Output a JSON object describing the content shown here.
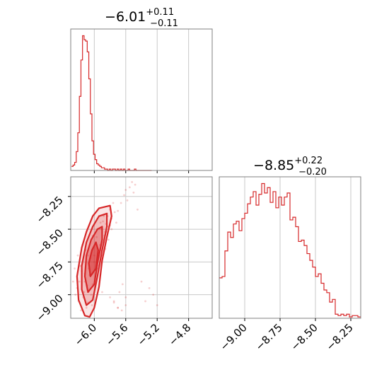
{
  "chart_data": [
    {
      "type": "histogram",
      "panel": "marginal-x",
      "title": {
        "value": "−6.01",
        "upper": "+0.11",
        "lower": "−0.11"
      },
      "xlim": [
        -6.3,
        -4.5
      ],
      "ylim": [
        0,
        1.05
      ],
      "grid": true,
      "color": "#d62728",
      "x": [
        -6.28,
        -6.26,
        -6.24,
        -6.22,
        -6.2,
        -6.18,
        -6.16,
        -6.14,
        -6.12,
        -6.1,
        -6.08,
        -6.06,
        -6.04,
        -6.02,
        -6.0,
        -5.98,
        -5.96,
        -5.94,
        -5.92,
        -5.9,
        -5.88,
        -5.86,
        -5.84,
        -5.82,
        -5.8,
        -5.78,
        -5.76,
        -5.74,
        -5.72,
        -5.7,
        -5.68,
        -5.66,
        -5.64,
        -5.62,
        -5.6,
        -5.58,
        -5.56,
        -5.54,
        -5.52,
        -5.5,
        -5.48,
        -5.46,
        -5.44,
        -5.42,
        -5.4,
        -5.38,
        -5.36,
        -5.34,
        -5.32,
        -5.3,
        -5.28
      ],
      "y": [
        0.03,
        0.04,
        0.06,
        0.14,
        0.28,
        0.55,
        0.82,
        1.0,
        0.97,
        0.96,
        0.88,
        0.68,
        0.42,
        0.22,
        0.12,
        0.08,
        0.05,
        0.04,
        0.03,
        0.02,
        0.02,
        0.01,
        0.01,
        0.0,
        0.01,
        0.0,
        0.01,
        0.01,
        0.0,
        0.01,
        0.0,
        0.01,
        0.0,
        0.01,
        0.0,
        0.0,
        0.01,
        0.0,
        0.0,
        0.0,
        0.01,
        0.0,
        0.0,
        0.0,
        0.0,
        0.0,
        0.0,
        0.0,
        0.0,
        0.0,
        0.0
      ]
    },
    {
      "type": "scatter",
      "panel": "joint",
      "xlim": [
        -6.3,
        -4.5
      ],
      "ylim": [
        -9.18,
        -8.1
      ],
      "xticks": [
        "−6.0",
        "−5.6",
        "−5.2",
        "−4.8"
      ],
      "yticks": [
        "−8.25",
        "−8.50",
        "−8.75",
        "−9.00"
      ],
      "grid": true,
      "color": "#d62728",
      "x": [
        -6.22,
        -6.2,
        -6.18,
        -6.15,
        -6.12,
        -6.1,
        -6.08,
        -6.06,
        -6.04,
        -6.02,
        -6.0,
        -5.98,
        -5.96,
        -5.94,
        -5.92,
        -5.9,
        -5.88,
        -5.86,
        -5.84,
        -5.82,
        -5.8,
        -5.78,
        -5.76,
        -5.74,
        -6.16,
        -6.14,
        -6.11,
        -6.09,
        -6.05,
        -6.03,
        -6.01,
        -5.99,
        -5.97,
        -5.95,
        -5.93,
        -5.91,
        -5.89,
        -5.87,
        -5.85,
        -5.83,
        -6.13,
        -6.07,
        -6.0,
        -5.96,
        -5.92,
        -5.88,
        -5.84,
        -5.8,
        -6.19,
        -6.17,
        -6.12,
        -6.08,
        -6.02,
        -5.98,
        -5.94,
        -5.9,
        -5.86,
        -5.82,
        -5.78,
        -5.72,
        -5.7,
        -5.66,
        -5.62,
        -5.6,
        -5.58,
        -5.55,
        -5.5,
        -5.45,
        -5.4,
        -5.35,
        -5.3,
        -5.25,
        -5.2,
        -5.6,
        -5.7,
        -5.75,
        -5.68,
        -5.64,
        -6.25,
        -6.27,
        -6.24,
        -6.21,
        -5.9,
        -5.8,
        -5.75,
        -5.7,
        -5.65,
        -5.6,
        -5.52,
        -5.48
      ],
      "y": [
        -8.95,
        -9.05,
        -8.78,
        -8.62,
        -8.9,
        -9.1,
        -8.7,
        -8.85,
        -9.0,
        -8.55,
        -8.75,
        -8.6,
        -8.5,
        -8.68,
        -8.45,
        -8.58,
        -8.4,
        -8.52,
        -8.38,
        -8.48,
        -8.35,
        -8.42,
        -8.3,
        -8.37,
        -8.82,
        -9.02,
        -8.66,
        -8.93,
        -8.72,
        -9.08,
        -8.64,
        -8.88,
        -8.56,
        -8.8,
        -8.62,
        -8.5,
        -8.44,
        -8.55,
        -8.46,
        -8.4,
        -8.98,
        -8.8,
        -8.7,
        -8.74,
        -8.66,
        -8.6,
        -8.52,
        -8.47,
        -8.9,
        -9.12,
        -8.84,
        -9.06,
        -8.92,
        -8.84,
        -8.78,
        -8.7,
        -8.65,
        -8.58,
        -8.5,
        -8.45,
        -8.36,
        -8.3,
        -8.24,
        -8.2,
        -8.28,
        -8.18,
        -8.22,
        -8.35,
        -8.9,
        -9.05,
        -8.95,
        -9.0,
        -9.08,
        -9.02,
        -9.1,
        -9.05,
        -8.98,
        -8.92,
        -8.8,
        -8.9,
        -9.0,
        -8.7,
        -8.98,
        -9.02,
        -9.06,
        -9.1,
        -9.12,
        -9.08,
        -8.14,
        -8.16
      ],
      "contours": [
        {
          "level": "outer",
          "points": [
            [
              -6.12,
              -9.16
            ],
            [
              -6.2,
              -9.04
            ],
            [
              -6.22,
              -8.86
            ],
            [
              -6.16,
              -8.64
            ],
            [
              -6.1,
              -8.52
            ],
            [
              -6.02,
              -8.4
            ],
            [
              -5.94,
              -8.34
            ],
            [
              -5.8,
              -8.32
            ],
            [
              -5.78,
              -8.4
            ],
            [
              -5.84,
              -8.56
            ],
            [
              -5.9,
              -8.74
            ],
            [
              -5.94,
              -8.94
            ],
            [
              -6.0,
              -9.1
            ],
            [
              -6.06,
              -9.17
            ]
          ]
        },
        {
          "level": "middle",
          "points": [
            [
              -6.1,
              -9.08
            ],
            [
              -6.16,
              -8.96
            ],
            [
              -6.16,
              -8.78
            ],
            [
              -6.1,
              -8.6
            ],
            [
              -6.02,
              -8.48
            ],
            [
              -5.94,
              -8.4
            ],
            [
              -5.84,
              -8.38
            ],
            [
              -5.84,
              -8.48
            ],
            [
              -5.9,
              -8.66
            ],
            [
              -5.96,
              -8.86
            ],
            [
              -6.02,
              -9.04
            ]
          ]
        },
        {
          "level": "inner",
          "points": [
            [
              -6.08,
              -8.98
            ],
            [
              -6.12,
              -8.86
            ],
            [
              -6.1,
              -8.7
            ],
            [
              -6.04,
              -8.58
            ],
            [
              -5.96,
              -8.5
            ],
            [
              -5.9,
              -8.48
            ],
            [
              -5.9,
              -8.58
            ],
            [
              -5.96,
              -8.76
            ],
            [
              -6.0,
              -8.92
            ]
          ]
        },
        {
          "level": "core",
          "points": [
            [
              -6.05,
              -8.86
            ],
            [
              -6.07,
              -8.76
            ],
            [
              -6.03,
              -8.66
            ],
            [
              -5.98,
              -8.6
            ],
            [
              -5.95,
              -8.66
            ],
            [
              -5.98,
              -8.8
            ]
          ]
        }
      ]
    },
    {
      "type": "histogram",
      "panel": "marginal-y",
      "title": {
        "value": "−8.85",
        "upper": "+0.22",
        "lower": "−0.20"
      },
      "xlim": [
        -9.18,
        -8.18
      ],
      "ylim": [
        0,
        1.05
      ],
      "xticks": [
        "−9.00",
        "−8.75",
        "−8.50",
        "−8.25"
      ],
      "grid": true,
      "color": "#d62728",
      "x": [
        -9.17,
        -9.15,
        -9.13,
        -9.11,
        -9.09,
        -9.07,
        -9.05,
        -9.03,
        -9.01,
        -8.99,
        -8.97,
        -8.95,
        -8.93,
        -8.91,
        -8.89,
        -8.87,
        -8.85,
        -8.83,
        -8.81,
        -8.79,
        -8.77,
        -8.75,
        -8.73,
        -8.71,
        -8.69,
        -8.67,
        -8.65,
        -8.63,
        -8.61,
        -8.59,
        -8.57,
        -8.55,
        -8.53,
        -8.51,
        -8.49,
        -8.47,
        -8.45,
        -8.43,
        -8.41,
        -8.39,
        -8.37,
        -8.35,
        -8.33,
        -8.31,
        -8.29,
        -8.27,
        -8.25,
        -8.23,
        -8.21,
        -8.19
      ],
      "y": [
        0.3,
        0.31,
        0.5,
        0.64,
        0.6,
        0.7,
        0.72,
        0.65,
        0.74,
        0.78,
        0.85,
        0.9,
        0.94,
        0.84,
        0.92,
        1.0,
        0.93,
        0.97,
        0.86,
        0.94,
        0.82,
        0.9,
        0.84,
        0.9,
        0.93,
        0.73,
        0.75,
        0.68,
        0.57,
        0.58,
        0.54,
        0.48,
        0.43,
        0.38,
        0.31,
        0.33,
        0.26,
        0.21,
        0.19,
        0.12,
        0.14,
        0.03,
        0.02,
        0.03,
        0.02,
        0.03,
        0.01,
        0.02,
        0.02,
        0.01
      ]
    }
  ]
}
